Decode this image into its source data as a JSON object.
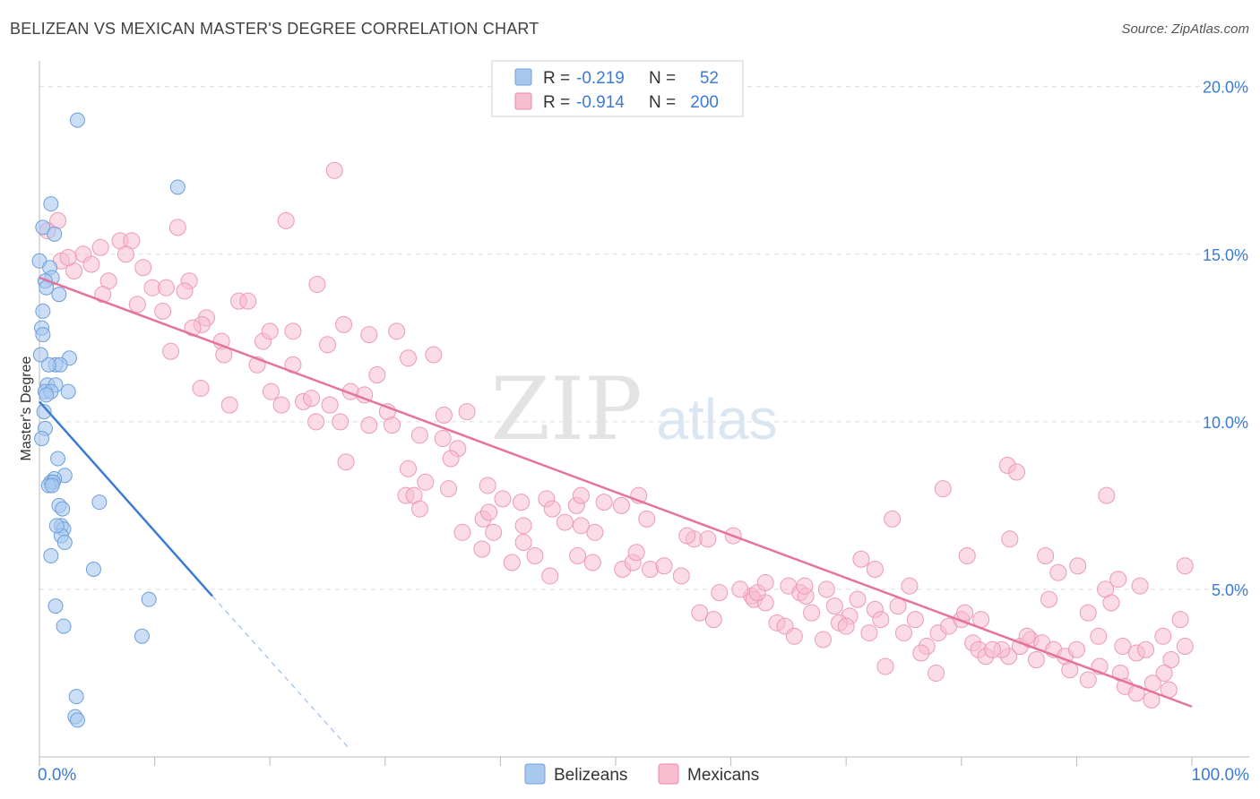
{
  "header": {
    "title": "BELIZEAN VS MEXICAN MASTER'S DEGREE CORRELATION CHART",
    "source": "Source: ZipAtlas.com"
  },
  "watermark": {
    "zip": "ZIP",
    "atlas": "atlas"
  },
  "legend_top": {
    "rows": [
      {
        "r_label": "R =",
        "r_value": "-0.219",
        "n_label": "N =",
        "n_value": "52",
        "color": "#a8c8f0",
        "stroke": "#6f9fd8"
      },
      {
        "r_label": "R =",
        "r_value": "-0.914",
        "n_label": "N =",
        "n_value": "200",
        "color": "#f8bed0",
        "stroke": "#e98aab"
      }
    ]
  },
  "legend_bottom": [
    {
      "label": "Belizeans",
      "color": "#a8c8f0",
      "stroke": "#6f9fd8"
    },
    {
      "label": "Mexicans",
      "color": "#f8bed0",
      "stroke": "#e98aab"
    }
  ],
  "chart_data": {
    "type": "scatter",
    "title": "BELIZEAN VS MEXICAN MASTER'S DEGREE CORRELATION CHART",
    "xlabel": "",
    "ylabel": "Master's Degree",
    "xlim": [
      0,
      100
    ],
    "ylim": [
      0,
      20.5
    ],
    "x_tick_labels": [
      {
        "value": 0,
        "label": "0.0%"
      },
      {
        "value": 100,
        "label": "100.0%"
      }
    ],
    "y_tick_labels": [
      {
        "value": 5,
        "label": "5.0%"
      },
      {
        "value": 10,
        "label": "10.0%"
      },
      {
        "value": 15,
        "label": "15.0%"
      },
      {
        "value": 20,
        "label": "20.0%"
      }
    ],
    "grid": true,
    "colors": {
      "belizeans": "#3a7bd5",
      "mexicans": "#e5739c"
    },
    "series": [
      {
        "name": "Belizeans",
        "trend": {
          "x_start": 0,
          "y_start": 10.6,
          "x_end": 15,
          "y_end": 4.8,
          "dashed_to_x": 27,
          "dashed_to_y": 0.2
        },
        "points": [
          [
            3.3,
            19.0
          ],
          [
            12.0,
            17.0
          ],
          [
            1.0,
            16.5
          ],
          [
            0.3,
            15.8
          ],
          [
            1.3,
            15.6
          ],
          [
            0.0,
            14.8
          ],
          [
            0.9,
            14.6
          ],
          [
            1.1,
            14.3
          ],
          [
            0.5,
            14.2
          ],
          [
            0.6,
            14.0
          ],
          [
            1.7,
            13.8
          ],
          [
            0.3,
            13.3
          ],
          [
            0.2,
            12.8
          ],
          [
            0.3,
            12.6
          ],
          [
            2.6,
            11.9
          ],
          [
            1.4,
            11.7
          ],
          [
            1.8,
            11.7
          ],
          [
            0.8,
            11.7
          ],
          [
            0.7,
            11.1
          ],
          [
            1.4,
            11.1
          ],
          [
            0.5,
            10.9
          ],
          [
            1.0,
            10.9
          ],
          [
            2.5,
            10.9
          ],
          [
            0.6,
            10.8
          ],
          [
            0.4,
            10.3
          ],
          [
            0.5,
            9.8
          ],
          [
            1.6,
            8.9
          ],
          [
            2.2,
            8.4
          ],
          [
            1.3,
            8.3
          ],
          [
            1.0,
            8.2
          ],
          [
            1.2,
            8.2
          ],
          [
            0.8,
            8.1
          ],
          [
            1.1,
            8.1
          ],
          [
            5.2,
            7.6
          ],
          [
            1.7,
            7.5
          ],
          [
            2.0,
            7.4
          ],
          [
            1.9,
            6.9
          ],
          [
            2.1,
            6.8
          ],
          [
            1.9,
            6.6
          ],
          [
            2.2,
            6.4
          ],
          [
            1.0,
            6.0
          ],
          [
            4.7,
            5.6
          ],
          [
            9.5,
            4.7
          ],
          [
            1.4,
            4.5
          ],
          [
            2.1,
            3.9
          ],
          [
            8.9,
            3.6
          ],
          [
            3.2,
            1.8
          ],
          [
            3.1,
            1.2
          ],
          [
            3.3,
            1.1
          ],
          [
            0.1,
            12.0
          ],
          [
            0.2,
            9.5
          ],
          [
            1.5,
            6.9
          ]
        ]
      },
      {
        "name": "Mexicans",
        "trend": {
          "x_start": 0,
          "y_start": 14.3,
          "x_end": 100,
          "y_end": 1.5
        },
        "points": [
          [
            1.6,
            16.0
          ],
          [
            0.7,
            15.7
          ],
          [
            3.8,
            15.0
          ],
          [
            5.3,
            15.2
          ],
          [
            7.0,
            15.4
          ],
          [
            8.0,
            15.4
          ],
          [
            1.9,
            14.8
          ],
          [
            3.0,
            14.5
          ],
          [
            7.5,
            15.0
          ],
          [
            9.0,
            14.6
          ],
          [
            4.5,
            14.7
          ],
          [
            2.5,
            14.9
          ],
          [
            6.0,
            14.2
          ],
          [
            12.0,
            15.8
          ],
          [
            25.6,
            17.5
          ],
          [
            21.4,
            16.0
          ],
          [
            9.8,
            14.0
          ],
          [
            11.0,
            14.0
          ],
          [
            13.0,
            14.2
          ],
          [
            14.5,
            13.1
          ],
          [
            10.7,
            13.3
          ],
          [
            8.5,
            13.5
          ],
          [
            12.6,
            13.9
          ],
          [
            5.5,
            13.8
          ],
          [
            17.3,
            13.6
          ],
          [
            18.1,
            13.6
          ],
          [
            24.1,
            14.1
          ],
          [
            11.4,
            12.1
          ],
          [
            14.1,
            12.9
          ],
          [
            13.3,
            12.8
          ],
          [
            15.8,
            12.4
          ],
          [
            19.4,
            12.4
          ],
          [
            20.0,
            12.7
          ],
          [
            22.0,
            12.7
          ],
          [
            26.4,
            12.9
          ],
          [
            28.6,
            12.6
          ],
          [
            31.0,
            12.7
          ],
          [
            32.0,
            11.9
          ],
          [
            34.2,
            12.0
          ],
          [
            16.0,
            12.0
          ],
          [
            14.0,
            11.0
          ],
          [
            18.9,
            11.7
          ],
          [
            22.0,
            11.7
          ],
          [
            29.3,
            11.4
          ],
          [
            25.0,
            12.3
          ],
          [
            20.1,
            10.9
          ],
          [
            22.9,
            10.6
          ],
          [
            23.6,
            10.7
          ],
          [
            25.2,
            10.5
          ],
          [
            27.0,
            10.9
          ],
          [
            28.2,
            10.8
          ],
          [
            16.5,
            10.5
          ],
          [
            21.0,
            10.5
          ],
          [
            24.0,
            10.0
          ],
          [
            26.1,
            10.0
          ],
          [
            28.6,
            9.9
          ],
          [
            30.2,
            10.3
          ],
          [
            30.6,
            9.9
          ],
          [
            35.1,
            10.2
          ],
          [
            37.1,
            10.3
          ],
          [
            33.0,
            9.6
          ],
          [
            35.0,
            9.5
          ],
          [
            36.3,
            9.2
          ],
          [
            35.7,
            8.9
          ],
          [
            26.6,
            8.8
          ],
          [
            32.0,
            8.6
          ],
          [
            33.5,
            8.2
          ],
          [
            31.8,
            7.8
          ],
          [
            32.5,
            7.8
          ],
          [
            33.0,
            7.4
          ],
          [
            35.5,
            8.0
          ],
          [
            38.9,
            8.1
          ],
          [
            38.5,
            7.1
          ],
          [
            39.0,
            7.3
          ],
          [
            40.2,
            7.7
          ],
          [
            41.8,
            7.6
          ],
          [
            42.0,
            6.9
          ],
          [
            43.0,
            6.0
          ],
          [
            44.0,
            7.7
          ],
          [
            44.5,
            7.4
          ],
          [
            45.6,
            7.0
          ],
          [
            46.6,
            7.5
          ],
          [
            47.0,
            7.8
          ],
          [
            49.0,
            7.6
          ],
          [
            50.5,
            7.5
          ],
          [
            52.0,
            7.8
          ],
          [
            36.7,
            6.7
          ],
          [
            38.4,
            6.2
          ],
          [
            39.4,
            6.7
          ],
          [
            41.0,
            5.8
          ],
          [
            42.0,
            6.4
          ],
          [
            44.3,
            5.4
          ],
          [
            46.7,
            6.0
          ],
          [
            48.0,
            5.8
          ],
          [
            50.6,
            5.6
          ],
          [
            51.5,
            5.8
          ],
          [
            53.0,
            5.6
          ],
          [
            54.2,
            5.7
          ],
          [
            55.7,
            5.4
          ],
          [
            56.8,
            6.5
          ],
          [
            58.0,
            6.5
          ],
          [
            60.2,
            6.6
          ],
          [
            57.3,
            4.3
          ],
          [
            58.5,
            4.1
          ],
          [
            59.0,
            4.9
          ],
          [
            61.8,
            4.8
          ],
          [
            62.0,
            4.7
          ],
          [
            63.0,
            4.6
          ],
          [
            64.0,
            4.0
          ],
          [
            65.0,
            5.1
          ],
          [
            66.0,
            4.9
          ],
          [
            66.5,
            4.8
          ],
          [
            67.0,
            4.3
          ],
          [
            68.3,
            5.0
          ],
          [
            69.0,
            4.5
          ],
          [
            70.3,
            4.2
          ],
          [
            71.0,
            4.7
          ],
          [
            72.5,
            4.4
          ],
          [
            74.5,
            4.5
          ],
          [
            75.0,
            3.7
          ],
          [
            62.3,
            4.9
          ],
          [
            64.7,
            3.9
          ],
          [
            65.5,
            3.6
          ],
          [
            68.0,
            3.5
          ],
          [
            69.4,
            4.0
          ],
          [
            70.0,
            3.9
          ],
          [
            72.0,
            3.7
          ],
          [
            73.0,
            4.1
          ],
          [
            76.0,
            4.1
          ],
          [
            77.0,
            3.3
          ],
          [
            78.0,
            3.7
          ],
          [
            78.9,
            3.9
          ],
          [
            80.0,
            4.1
          ],
          [
            81.0,
            3.4
          ],
          [
            81.5,
            3.2
          ],
          [
            82.1,
            3.0
          ],
          [
            84.1,
            3.0
          ],
          [
            85.1,
            3.3
          ],
          [
            86.0,
            3.5
          ],
          [
            87.0,
            3.4
          ],
          [
            88.0,
            3.2
          ],
          [
            89.0,
            3.0
          ],
          [
            90.0,
            3.2
          ],
          [
            91.0,
            4.3
          ],
          [
            91.9,
            3.6
          ],
          [
            92.5,
            5.0
          ],
          [
            93.0,
            4.6
          ],
          [
            94.0,
            3.3
          ],
          [
            95.2,
            3.1
          ],
          [
            96.0,
            3.2
          ],
          [
            97.5,
            3.6
          ],
          [
            98.2,
            2.9
          ],
          [
            99.0,
            4.1
          ],
          [
            60.8,
            5.0
          ],
          [
            63.0,
            5.2
          ],
          [
            66.4,
            5.1
          ],
          [
            71.3,
            5.9
          ],
          [
            72.5,
            5.6
          ],
          [
            75.5,
            5.1
          ],
          [
            80.5,
            6.0
          ],
          [
            84.2,
            6.5
          ],
          [
            87.3,
            6.0
          ],
          [
            88.4,
            5.5
          ],
          [
            90.1,
            5.7
          ],
          [
            93.6,
            5.3
          ],
          [
            95.5,
            5.1
          ],
          [
            99.4,
            5.7
          ],
          [
            78.4,
            8.0
          ],
          [
            84.0,
            8.7
          ],
          [
            92.6,
            7.8
          ],
          [
            84.8,
            8.5
          ],
          [
            87.6,
            4.7
          ],
          [
            85.7,
            3.6
          ],
          [
            83.5,
            3.2
          ],
          [
            81.7,
            4.1
          ],
          [
            80.3,
            4.3
          ],
          [
            76.5,
            3.1
          ],
          [
            73.4,
            2.7
          ],
          [
            77.8,
            2.5
          ],
          [
            82.7,
            3.2
          ],
          [
            86.5,
            2.9
          ],
          [
            89.4,
            2.6
          ],
          [
            91.0,
            2.3
          ],
          [
            92.0,
            2.7
          ],
          [
            93.8,
            2.5
          ],
          [
            94.2,
            2.1
          ],
          [
            95.2,
            1.9
          ],
          [
            96.5,
            1.7
          ],
          [
            97.6,
            2.5
          ],
          [
            98.0,
            2.0
          ],
          [
            99.4,
            3.3
          ],
          [
            96.6,
            2.2
          ],
          [
            74.0,
            7.1
          ],
          [
            56.2,
            6.6
          ],
          [
            51.8,
            6.1
          ],
          [
            52.7,
            7.1
          ],
          [
            48.2,
            6.7
          ],
          [
            47.0,
            6.9
          ]
        ]
      }
    ]
  }
}
